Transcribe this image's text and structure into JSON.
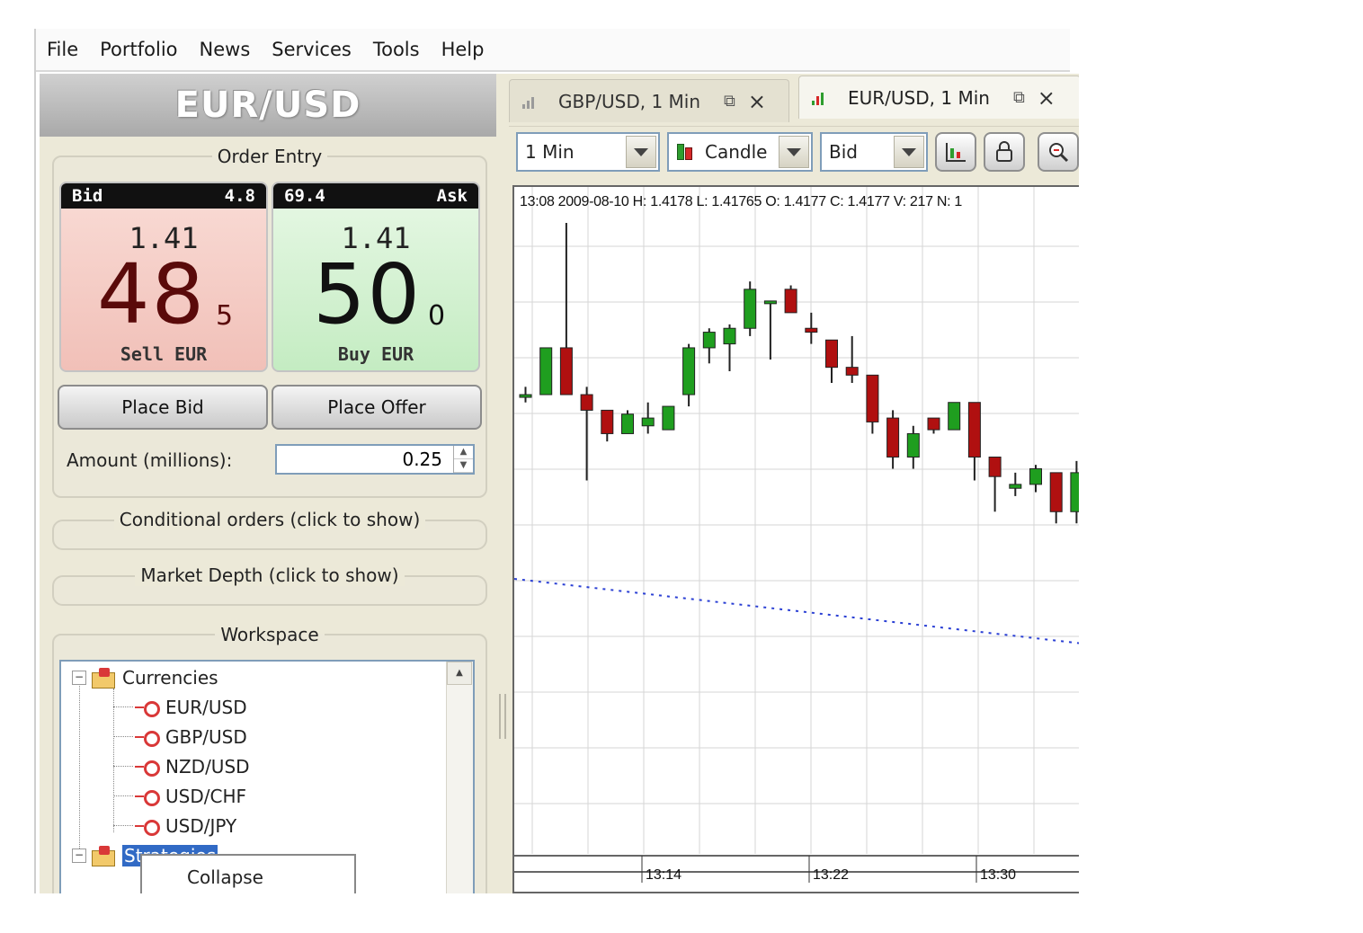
{
  "menu": [
    "File",
    "Portfolio",
    "News",
    "Services",
    "Tools",
    "Help"
  ],
  "instrument": "EUR/USD",
  "order_entry": {
    "legend": "Order Entry",
    "bid": {
      "label": "Bid",
      "spread": "4.8",
      "big_small": "1.41",
      "big": "48",
      "pip": "5",
      "caption": "Sell EUR"
    },
    "ask": {
      "label": "Ask",
      "spread": "69.4",
      "big_small": "1.41",
      "big": "50",
      "pip": "0",
      "caption": "Buy EUR"
    },
    "place_bid": "Place Bid",
    "place_offer": "Place Offer",
    "amount_label": "Amount (millions):",
    "amount_value": "0.25"
  },
  "conditional_orders": "Conditional orders (click to show)",
  "market_depth": "Market Depth (click to show)",
  "workspace": {
    "legend": "Workspace",
    "currencies_label": "Currencies",
    "pairs": [
      "EUR/USD",
      "GBP/USD",
      "NZD/USD",
      "USD/CHF",
      "USD/JPY"
    ],
    "strategies_label": "Strategies",
    "context_menu_item": "Collapse"
  },
  "tabs": [
    {
      "label": "GBP/USD, 1 Min",
      "active": false
    },
    {
      "label": "EUR/USD, 1 Min",
      "active": true
    }
  ],
  "toolbar": {
    "period": "1 Min",
    "chart_type": "Candle",
    "price_side": "Bid"
  },
  "chart_info": "13:08 2009-08-10 H: 1.4178 L: 1.41765 O: 1.4177 C: 1.4177 V: 217 N: 1",
  "x_ticks": [
    "13:14",
    "13:22",
    "13:30"
  ],
  "colors": {
    "up": "#1f9e1f",
    "down": "#b01010",
    "trendline": "#2a3fd4"
  },
  "chart_data": {
    "type": "candlestick",
    "up_color": "#1f9e1f",
    "down_color": "#b01010",
    "candles": [
      {
        "o": 1.41728,
        "h": 1.4173,
        "l": 1.41726,
        "c": 1.41728
      },
      {
        "o": 1.41728,
        "h": 1.4174,
        "l": 1.41728,
        "c": 1.4174
      },
      {
        "o": 1.4174,
        "h": 1.41772,
        "l": 1.41728,
        "c": 1.41728
      },
      {
        "o": 1.41728,
        "h": 1.4173,
        "l": 1.41706,
        "c": 1.41724
      },
      {
        "o": 1.41724,
        "h": 1.41724,
        "l": 1.41716,
        "c": 1.41718
      },
      {
        "o": 1.41718,
        "h": 1.41724,
        "l": 1.41718,
        "c": 1.41723
      },
      {
        "o": 1.4172,
        "h": 1.41726,
        "l": 1.41718,
        "c": 1.41722
      },
      {
        "o": 1.41719,
        "h": 1.41725,
        "l": 1.41719,
        "c": 1.41725
      },
      {
        "o": 1.41728,
        "h": 1.41741,
        "l": 1.41725,
        "c": 1.4174
      },
      {
        "o": 1.4174,
        "h": 1.41745,
        "l": 1.41736,
        "c": 1.41744
      },
      {
        "o": 1.41741,
        "h": 1.41746,
        "l": 1.41734,
        "c": 1.41745
      },
      {
        "o": 1.41745,
        "h": 1.41757,
        "l": 1.41743,
        "c": 1.41755
      },
      {
        "o": 1.41752,
        "h": 1.41752,
        "l": 1.41737,
        "c": 1.41752
      },
      {
        "o": 1.41755,
        "h": 1.41756,
        "l": 1.41749,
        "c": 1.41749
      },
      {
        "o": 1.41745,
        "h": 1.41749,
        "l": 1.41741,
        "c": 1.41744
      },
      {
        "o": 1.41742,
        "h": 1.41742,
        "l": 1.41731,
        "c": 1.41735
      },
      {
        "o": 1.41735,
        "h": 1.41743,
        "l": 1.41731,
        "c": 1.41733
      },
      {
        "o": 1.41733,
        "h": 1.41733,
        "l": 1.41718,
        "c": 1.41721
      },
      {
        "o": 1.41722,
        "h": 1.41724,
        "l": 1.41709,
        "c": 1.41712
      },
      {
        "o": 1.41712,
        "h": 1.4172,
        "l": 1.41709,
        "c": 1.41718
      },
      {
        "o": 1.41722,
        "h": 1.41722,
        "l": 1.41718,
        "c": 1.41719
      },
      {
        "o": 1.41719,
        "h": 1.41726,
        "l": 1.41719,
        "c": 1.41726
      },
      {
        "o": 1.41726,
        "h": 1.41726,
        "l": 1.41706,
        "c": 1.41712
      },
      {
        "o": 1.41712,
        "h": 1.41712,
        "l": 1.41698,
        "c": 1.41707
      },
      {
        "o": 1.41704,
        "h": 1.41708,
        "l": 1.41702,
        "c": 1.41705
      },
      {
        "o": 1.41705,
        "h": 1.4171,
        "l": 1.41703,
        "c": 1.41709
      },
      {
        "o": 1.41708,
        "h": 1.41708,
        "l": 1.41695,
        "c": 1.41698
      },
      {
        "o": 1.41698,
        "h": 1.41711,
        "l": 1.41695,
        "c": 1.41708
      }
    ]
  }
}
